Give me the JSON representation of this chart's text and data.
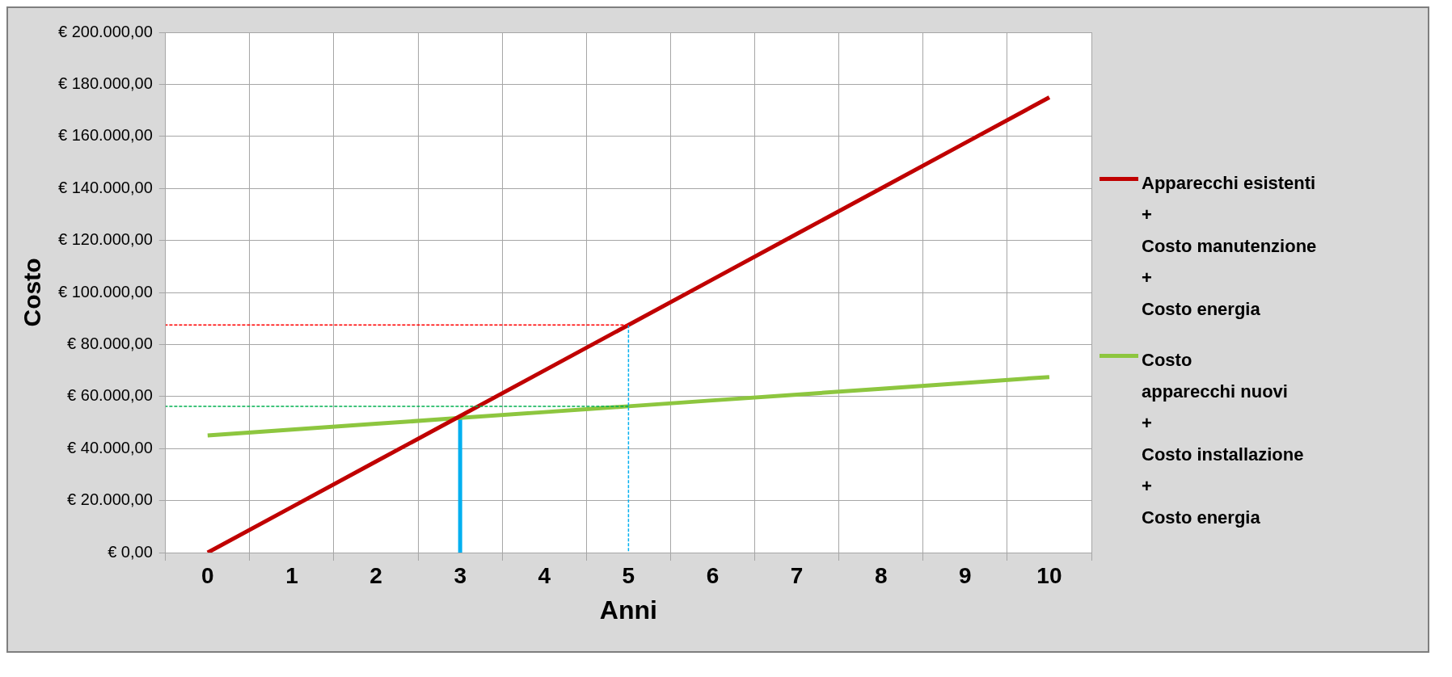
{
  "chart_data": {
    "type": "line",
    "xlabel": "Anni",
    "ylabel": "Costo",
    "x": [
      0,
      1,
      2,
      3,
      4,
      5,
      6,
      7,
      8,
      9,
      10
    ],
    "xlim": [
      -0.5,
      10.5
    ],
    "xticks": [
      {
        "value": -0.5,
        "label": null
      },
      0,
      {
        "value": 0.5,
        "label": null
      },
      1,
      {
        "value": 1.5,
        "label": null
      },
      2,
      {
        "value": 2.5,
        "label": null
      },
      3,
      {
        "value": 3.5,
        "label": null
      },
      4,
      {
        "value": 4.5,
        "label": null
      },
      5,
      {
        "value": 5.5,
        "label": null
      },
      6,
      {
        "value": 6.5,
        "label": null
      },
      7,
      {
        "value": 7.5,
        "label": null
      },
      8,
      {
        "value": 8.5,
        "label": null
      },
      9,
      {
        "value": 9.5,
        "label": null
      },
      10,
      {
        "value": 10.5,
        "label": null
      }
    ],
    "ylim": [
      0,
      200000
    ],
    "yticks": [
      {
        "value": 0,
        "label": "€ 0,00"
      },
      {
        "value": 20000,
        "label": "€ 20.000,00"
      },
      {
        "value": 40000,
        "label": "€ 40.000,00"
      },
      {
        "value": 60000,
        "label": "€ 60.000,00"
      },
      {
        "value": 80000,
        "label": "€ 80.000,00"
      },
      {
        "value": 100000,
        "label": "€ 100.000,00"
      },
      {
        "value": 120000,
        "label": "€ 120.000,00"
      },
      {
        "value": 140000,
        "label": "€ 140.000,00"
      },
      {
        "value": 160000,
        "label": "€ 160.000,00"
      },
      {
        "value": 180000,
        "label": "€ 180.000,00"
      },
      {
        "value": 200000,
        "label": "€ 200.000,00"
      }
    ],
    "grid": true,
    "legend": "right",
    "marker": "none",
    "series": [
      {
        "name": "Apparecchi esistenti\n+\nCosto manutenzione\n+\nCosto energia",
        "color": "#c00000",
        "values": [
          0,
          17500,
          35000,
          52500,
          70000,
          87500,
          105000,
          122500,
          140000,
          157500,
          175000
        ]
      },
      {
        "name": "Costo\napparecchi nuovi\n+\nCosto installazione\n+\nCosto energia",
        "color": "#8dc63f",
        "values": [
          45000,
          47250,
          49500,
          51750,
          54000,
          56250,
          58500,
          60750,
          63000,
          65250,
          67500
        ]
      },
      {
        "color": "#ff0000",
        "x": [
          5,
          -0.5
        ],
        "values": [
          87500,
          87500
        ],
        "line_style": "dashed"
      },
      {
        "color": "#00b050",
        "x": [
          5,
          -0.5
        ],
        "values": [
          56250,
          56250
        ],
        "line_style": "dashed"
      },
      {
        "color": "#00b0f0",
        "x": [
          5,
          5
        ],
        "values": [
          87500,
          0
        ],
        "line_style": "dashed"
      },
      {
        "color": "#00b0f0",
        "x": [
          3,
          3
        ],
        "values": [
          0,
          52000
        ],
        "line_style": "solid"
      }
    ]
  }
}
